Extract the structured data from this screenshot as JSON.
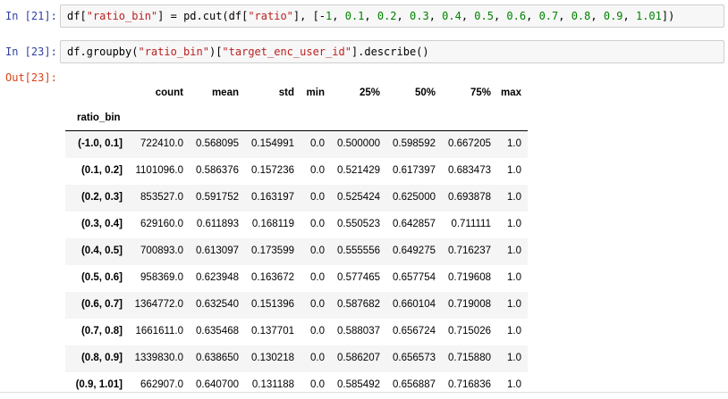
{
  "cells": [
    {
      "prompt": "In [21]:",
      "code_tokens": [
        {
          "t": "df[",
          "c": "op"
        },
        {
          "t": "\"ratio_bin\"",
          "c": "str"
        },
        {
          "t": "] = pd.cut(df[",
          "c": "op"
        },
        {
          "t": "\"ratio\"",
          "c": "str"
        },
        {
          "t": "], [-",
          "c": "op"
        },
        {
          "t": "1",
          "c": "num"
        },
        {
          "t": ", ",
          "c": "op"
        },
        {
          "t": "0.1",
          "c": "num"
        },
        {
          "t": ", ",
          "c": "op"
        },
        {
          "t": "0.2",
          "c": "num"
        },
        {
          "t": ", ",
          "c": "op"
        },
        {
          "t": "0.3",
          "c": "num"
        },
        {
          "t": ", ",
          "c": "op"
        },
        {
          "t": "0.4",
          "c": "num"
        },
        {
          "t": ", ",
          "c": "op"
        },
        {
          "t": "0.5",
          "c": "num"
        },
        {
          "t": ", ",
          "c": "op"
        },
        {
          "t": "0.6",
          "c": "num"
        },
        {
          "t": ", ",
          "c": "op"
        },
        {
          "t": "0.7",
          "c": "num"
        },
        {
          "t": ", ",
          "c": "op"
        },
        {
          "t": "0.8",
          "c": "num"
        },
        {
          "t": ", ",
          "c": "op"
        },
        {
          "t": "0.9",
          "c": "num"
        },
        {
          "t": ", ",
          "c": "op"
        },
        {
          "t": "1.01",
          "c": "num"
        },
        {
          "t": "])",
          "c": "op"
        }
      ]
    },
    {
      "prompt": "In [23]:",
      "code_tokens": [
        {
          "t": "df.groupby(",
          "c": "op"
        },
        {
          "t": "\"ratio_bin\"",
          "c": "str"
        },
        {
          "t": ")[",
          "c": "op"
        },
        {
          "t": "\"target_enc_user_id\"",
          "c": "str"
        },
        {
          "t": "].describe()",
          "c": "op"
        }
      ]
    }
  ],
  "output": {
    "prompt": "Out[23]:",
    "columns": [
      "count",
      "mean",
      "std",
      "min",
      "25%",
      "50%",
      "75%",
      "max"
    ],
    "index_name": "ratio_bin",
    "rows": [
      {
        "index": "(-1.0, 0.1]",
        "values": [
          "722410.0",
          "0.568095",
          "0.154991",
          "0.0",
          "0.500000",
          "0.598592",
          "0.667205",
          "1.0"
        ]
      },
      {
        "index": "(0.1, 0.2]",
        "values": [
          "1101096.0",
          "0.586376",
          "0.157236",
          "0.0",
          "0.521429",
          "0.617397",
          "0.683473",
          "1.0"
        ]
      },
      {
        "index": "(0.2, 0.3]",
        "values": [
          "853527.0",
          "0.591752",
          "0.163197",
          "0.0",
          "0.525424",
          "0.625000",
          "0.693878",
          "1.0"
        ]
      },
      {
        "index": "(0.3, 0.4]",
        "values": [
          "629160.0",
          "0.611893",
          "0.168119",
          "0.0",
          "0.550523",
          "0.642857",
          "0.711111",
          "1.0"
        ]
      },
      {
        "index": "(0.4, 0.5]",
        "values": [
          "700893.0",
          "0.613097",
          "0.173599",
          "0.0",
          "0.555556",
          "0.649275",
          "0.716237",
          "1.0"
        ]
      },
      {
        "index": "(0.5, 0.6]",
        "values": [
          "958369.0",
          "0.623948",
          "0.163672",
          "0.0",
          "0.577465",
          "0.657754",
          "0.719608",
          "1.0"
        ]
      },
      {
        "index": "(0.6, 0.7]",
        "values": [
          "1364772.0",
          "0.632540",
          "0.151396",
          "0.0",
          "0.587682",
          "0.660104",
          "0.719008",
          "1.0"
        ]
      },
      {
        "index": "(0.7, 0.8]",
        "values": [
          "1661611.0",
          "0.635468",
          "0.137701",
          "0.0",
          "0.588037",
          "0.656724",
          "0.715026",
          "1.0"
        ]
      },
      {
        "index": "(0.8, 0.9]",
        "values": [
          "1339830.0",
          "0.638650",
          "0.130218",
          "0.0",
          "0.586207",
          "0.656573",
          "0.715880",
          "1.0"
        ]
      },
      {
        "index": "(0.9, 1.01]",
        "values": [
          "662907.0",
          "0.640700",
          "0.131188",
          "0.0",
          "0.585492",
          "0.656887",
          "0.716836",
          "1.0"
        ]
      }
    ]
  }
}
